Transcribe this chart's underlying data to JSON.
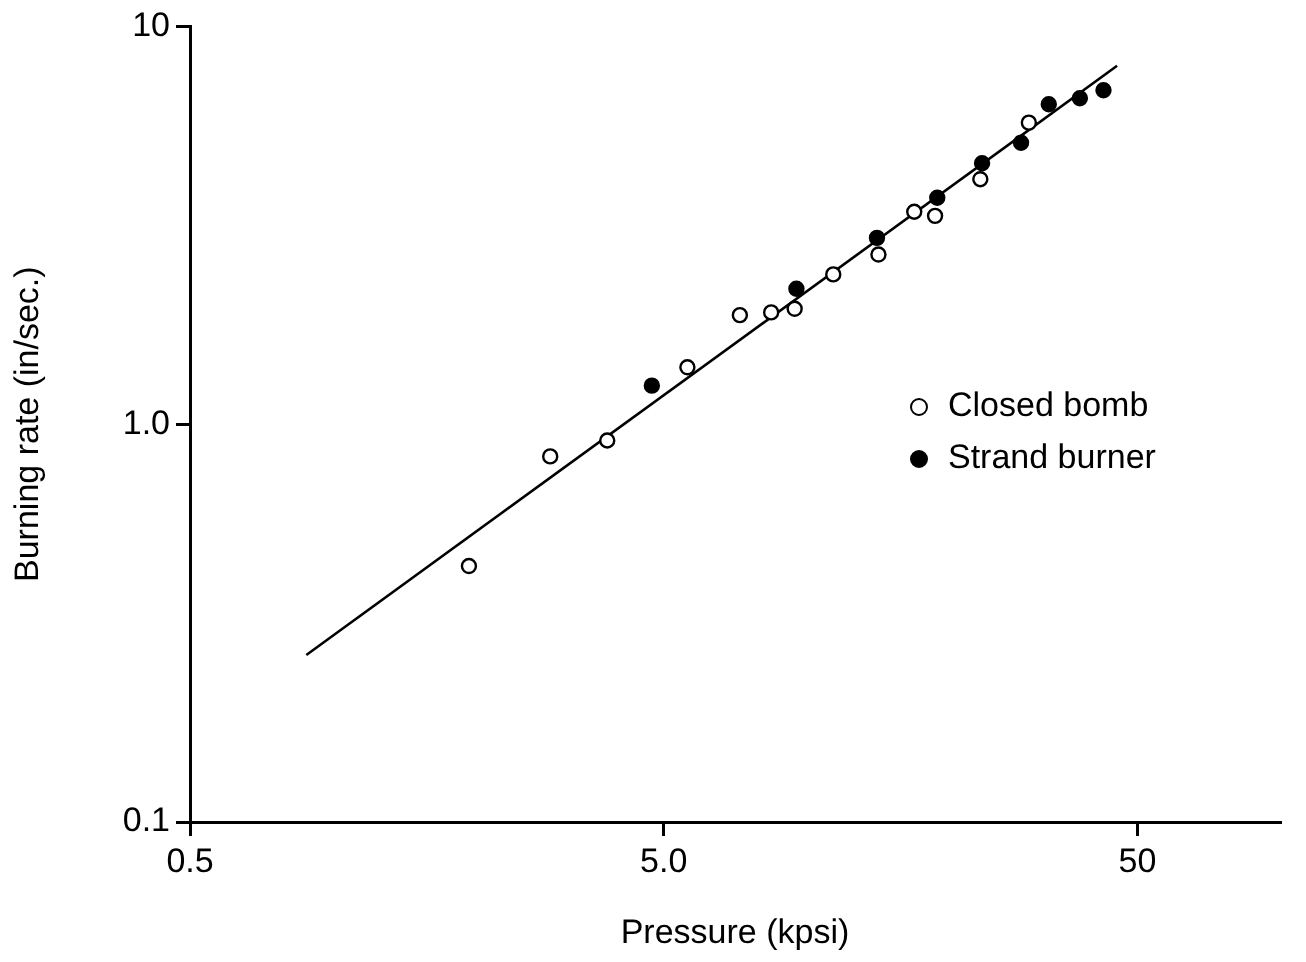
{
  "chart_data": {
    "type": "scatter",
    "xlabel": "Pressure (kpsi)",
    "ylabel": "Burning rate (in/sec.)",
    "log": "xy",
    "grid": false,
    "legend": "right",
    "xlim": [
      0.5,
      100
    ],
    "xticks": [
      0.5,
      {
        "value": 5,
        "label": "5.0"
      },
      50
    ],
    "ylim": [
      0.1,
      10
    ],
    "yticks": [
      0.1,
      {
        "value": 1,
        "label": "1.0"
      },
      10
    ],
    "series": [
      {
        "name": "Closed bomb",
        "color": "#000000",
        "marker": "circle",
        "x": [
          1.94,
          2.88,
          3.8,
          5.61,
          7.24,
          8.43,
          9.45,
          11.4,
          14.2,
          16.9,
          18.7,
          23.3,
          29.5
        ],
        "values": [
          0.44,
          0.83,
          0.91,
          1.39,
          1.88,
          1.91,
          1.95,
          2.38,
          2.67,
          3.42,
          3.34,
          4.13,
          5.73
        ]
      },
      {
        "name": "Strand burner",
        "color": "#000000",
        "marker": "circle",
        "x": [
          4.72,
          9.53,
          14.1,
          18.9,
          23.5,
          28.4,
          32.5,
          37.8,
          42.4
        ],
        "values": [
          1.25,
          2.19,
          2.94,
          3.71,
          4.53,
          5.1,
          6.37,
          6.6,
          6.91
        ]
      },
      {
        "type": "line",
        "color": "#000000",
        "marker": "none",
        "x": [
          0.88,
          45.3
        ],
        "values": [
          0.263,
          7.96
        ]
      }
    ]
  }
}
